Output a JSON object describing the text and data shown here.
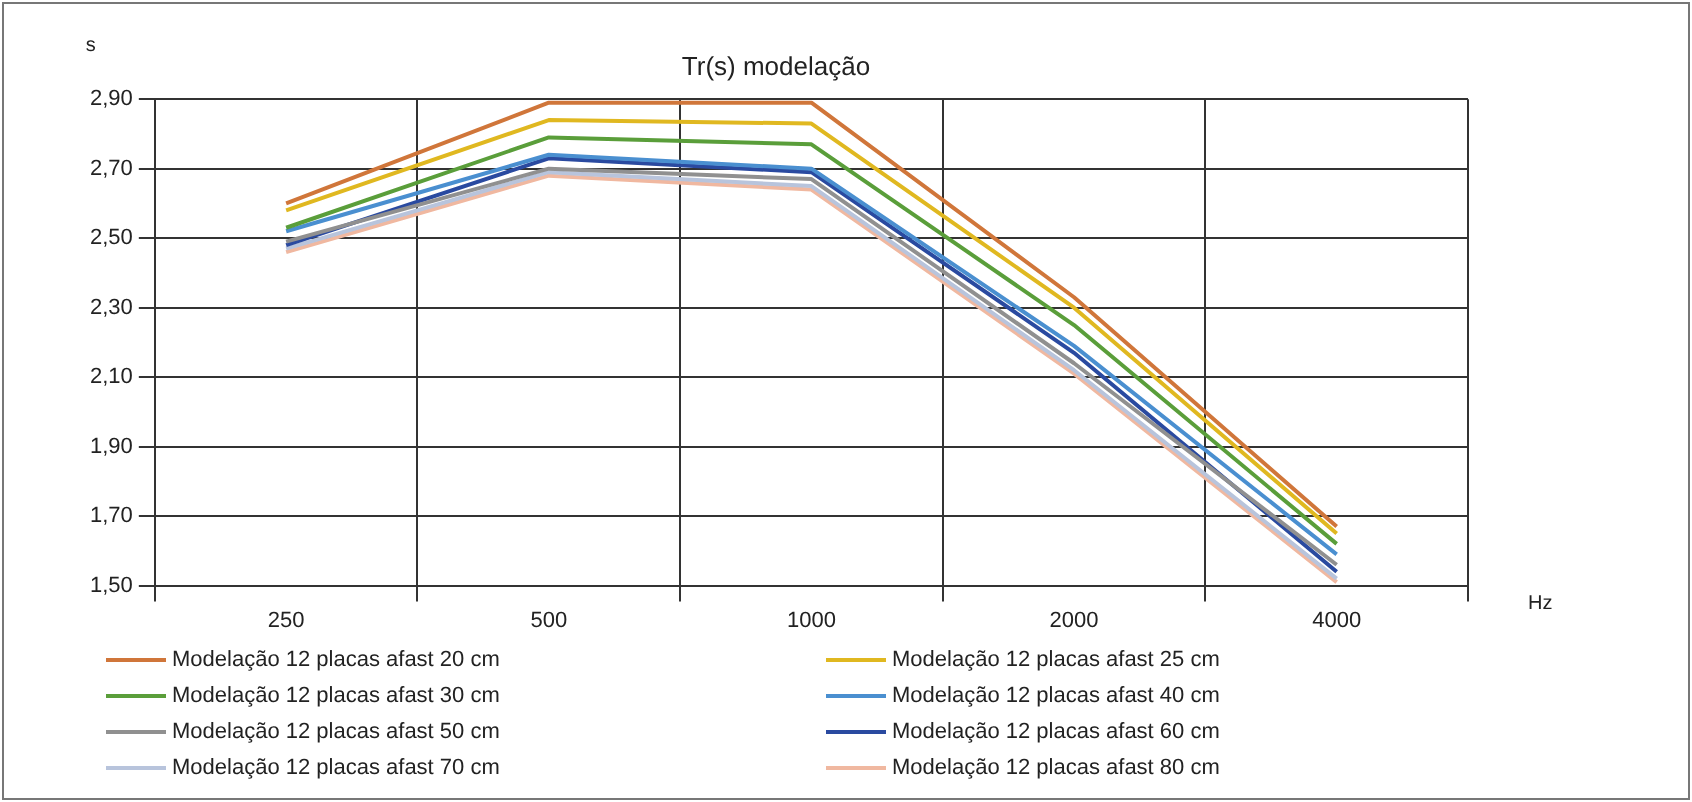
{
  "chart_data": {
    "type": "line",
    "title": "Tr(s) modelação",
    "xlabel": "Hz",
    "ylabel": "s",
    "categories": [
      "250",
      "500",
      "1000",
      "2000",
      "4000"
    ],
    "ylim": [
      1.5,
      2.9
    ],
    "yticks": [
      {
        "value": 1.5,
        "label": "1,50"
      },
      {
        "value": 1.7,
        "label": "1,70"
      },
      {
        "value": 1.9,
        "label": "1,90"
      },
      {
        "value": 2.1,
        "label": "2,10"
      },
      {
        "value": 2.3,
        "label": "2,30"
      },
      {
        "value": 2.5,
        "label": "2,50"
      },
      {
        "value": 2.7,
        "label": "2,70"
      },
      {
        "value": 2.9,
        "label": "2,90"
      }
    ],
    "grid": true,
    "legend": "bottom",
    "marker": "none",
    "line_style": "solid",
    "series": [
      {
        "name": "Modelação 12 placas afast 20 cm",
        "color": "#d0763a",
        "values": [
          2.6,
          2.89,
          2.89,
          2.33,
          1.67
        ]
      },
      {
        "name": "Modelação 12 placas afast 25 cm",
        "color": "#e0b820",
        "values": [
          2.58,
          2.84,
          2.83,
          2.3,
          1.65
        ]
      },
      {
        "name": "Modelação 12 placas afast 30 cm",
        "color": "#5a9e3a",
        "values": [
          2.53,
          2.79,
          2.77,
          2.25,
          1.62
        ]
      },
      {
        "name": "Modelação 12 placas afast 40 cm",
        "color": "#4a8fd0",
        "values": [
          2.52,
          2.74,
          2.7,
          2.19,
          1.59
        ]
      },
      {
        "name": "Modelação 12 placas afast 50 cm",
        "color": "#909090",
        "values": [
          2.49,
          2.7,
          2.67,
          2.14,
          1.56
        ]
      },
      {
        "name": "Modelação 12 placas afast 60 cm",
        "color": "#2a4aa0",
        "values": [
          2.48,
          2.73,
          2.69,
          2.17,
          1.54
        ]
      },
      {
        "name": "Modelação 12 placas afast 70 cm",
        "color": "#b8c4dc",
        "values": [
          2.47,
          2.69,
          2.65,
          2.12,
          1.52
        ]
      },
      {
        "name": "Modelação 12 placas afast 80 cm",
        "color": "#f0b8a0",
        "values": [
          2.46,
          2.68,
          2.64,
          2.11,
          1.51
        ]
      }
    ]
  }
}
